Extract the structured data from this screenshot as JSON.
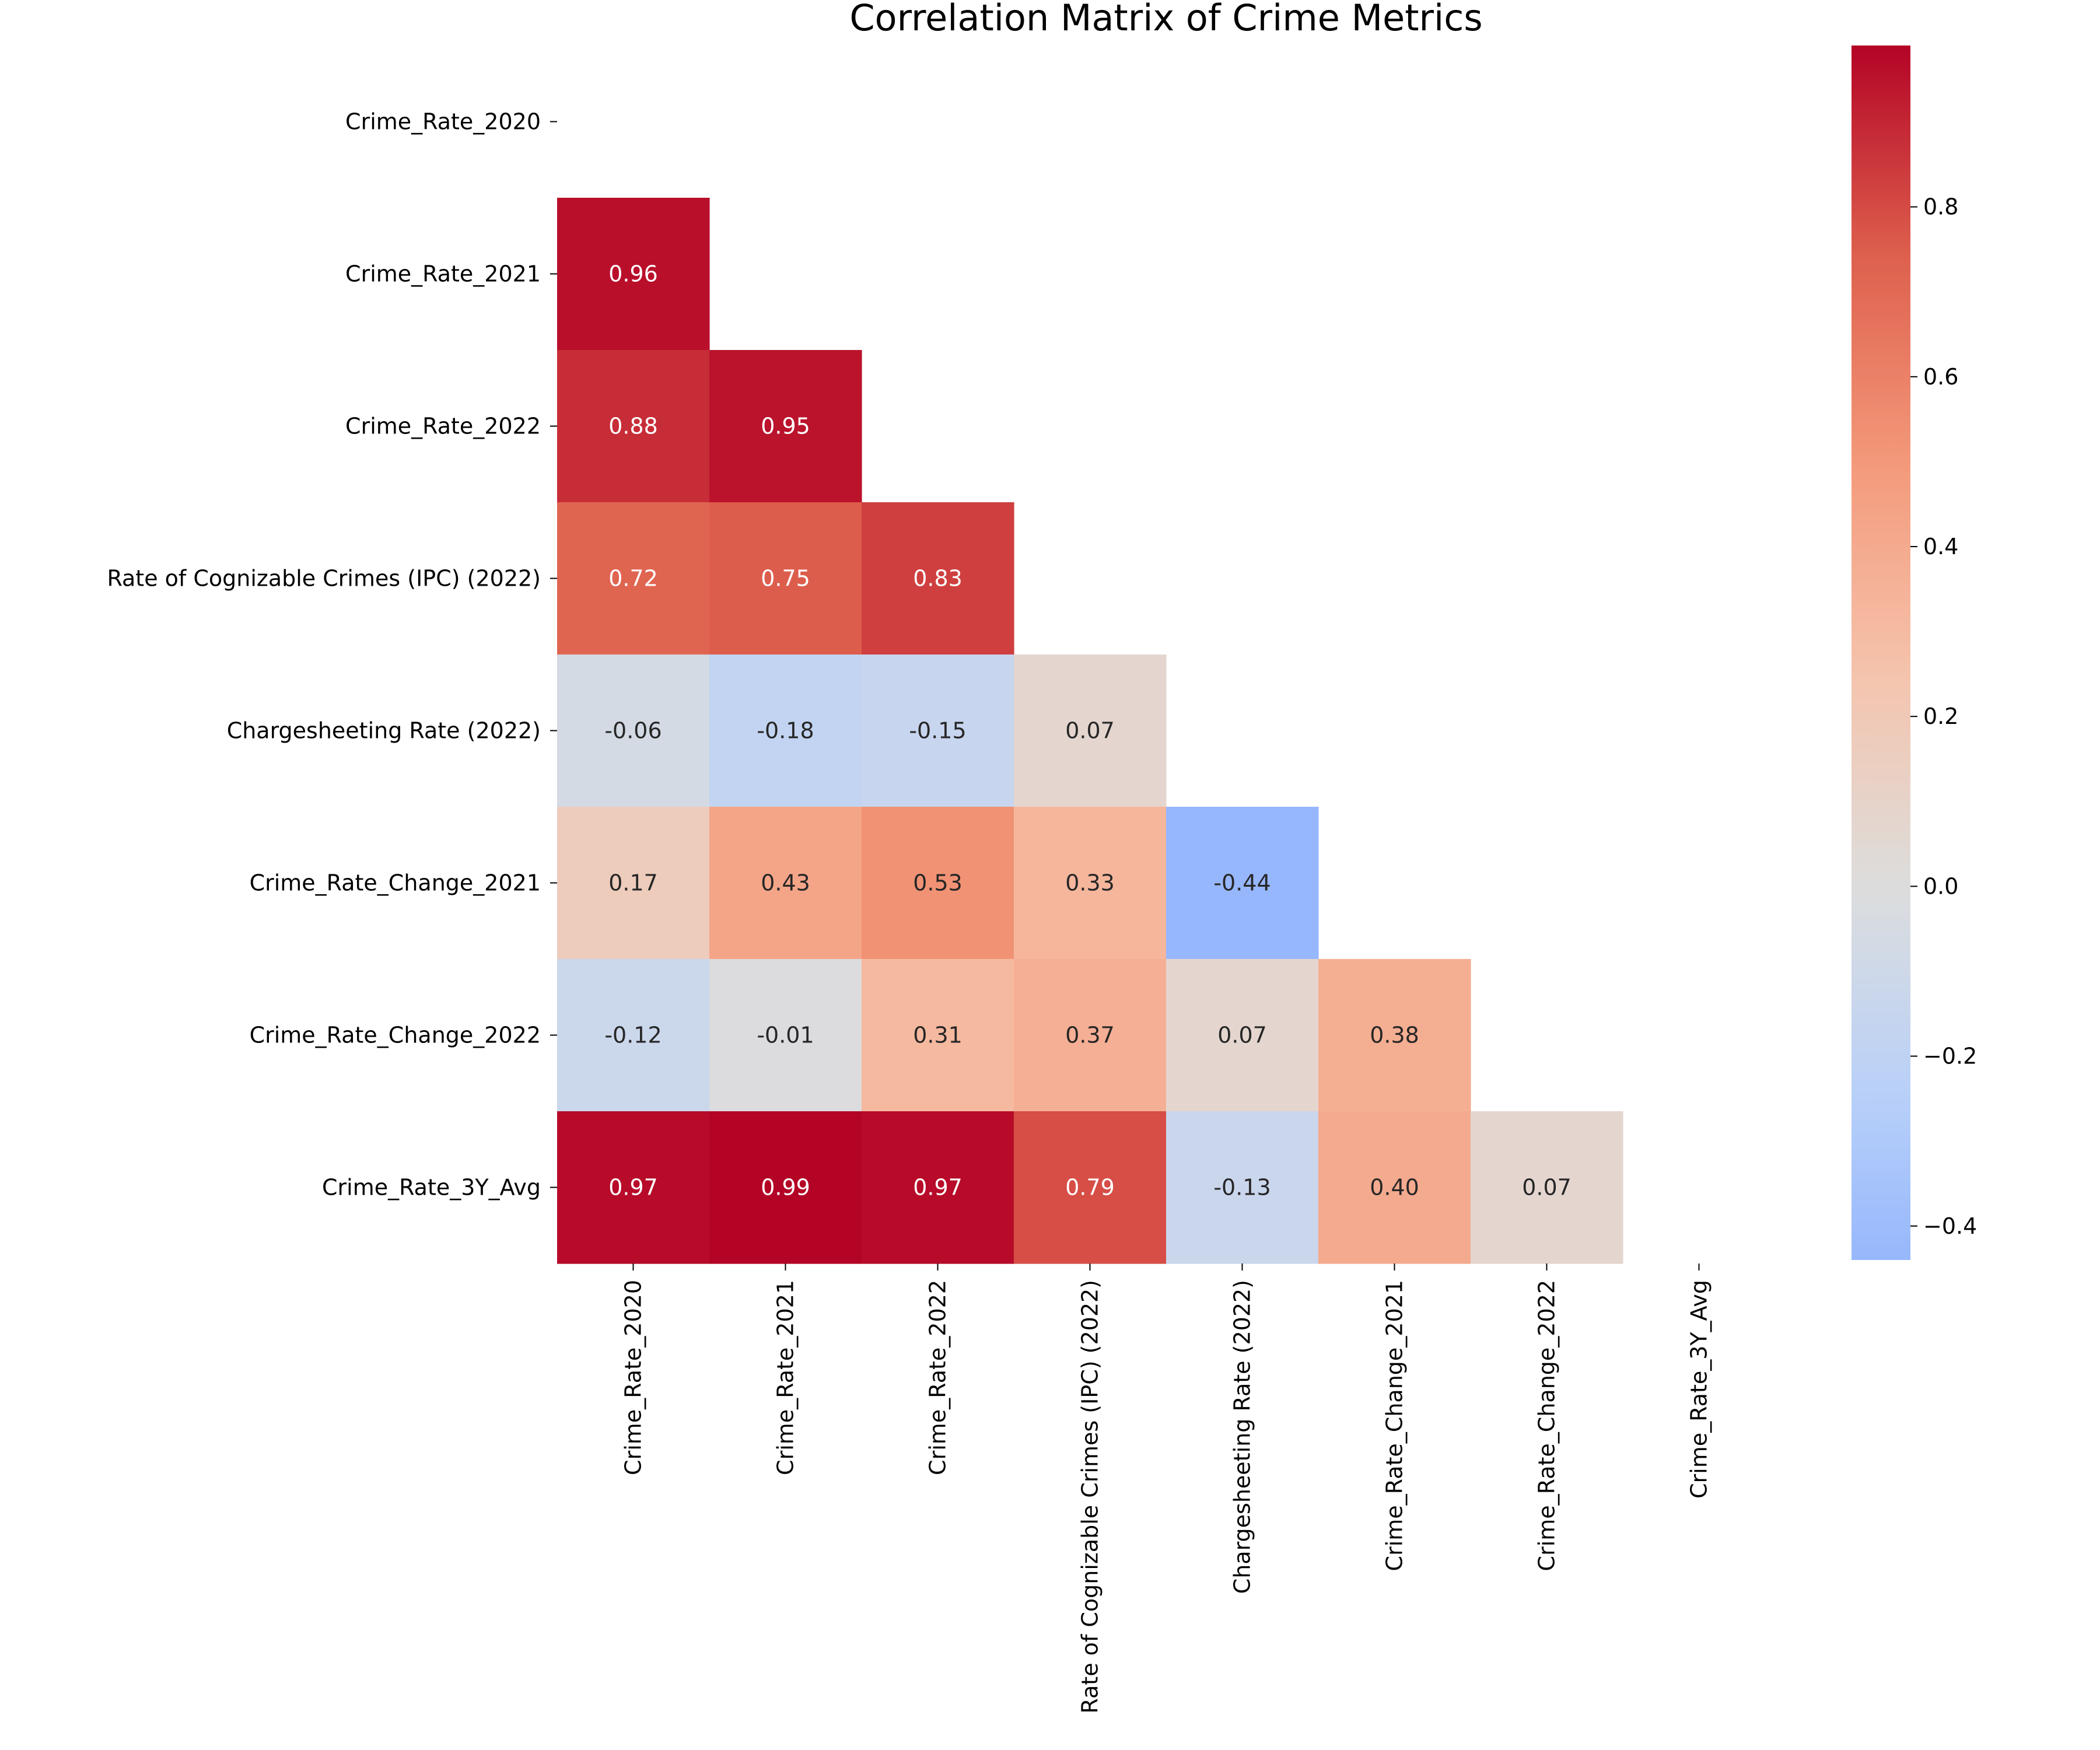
{
  "chart_data": {
    "type": "heatmap",
    "title": "Correlation Matrix of Crime Metrics",
    "mask": "upper-triangle-including-diagonal",
    "labels": [
      "Crime_Rate_2020",
      "Crime_Rate_2021",
      "Crime_Rate_2022",
      "Rate of Cognizable Crimes (IPC) (2022)",
      "Chargesheeting Rate (2022)",
      "Crime_Rate_Change_2021",
      "Crime_Rate_Change_2022",
      "Crime_Rate_3Y_Avg"
    ],
    "values": [
      [
        null,
        null,
        null,
        null,
        null,
        null,
        null,
        null
      ],
      [
        0.96,
        null,
        null,
        null,
        null,
        null,
        null,
        null
      ],
      [
        0.88,
        0.95,
        null,
        null,
        null,
        null,
        null,
        null
      ],
      [
        0.72,
        0.75,
        0.83,
        null,
        null,
        null,
        null,
        null
      ],
      [
        -0.06,
        -0.18,
        -0.15,
        0.07,
        null,
        null,
        null,
        null
      ],
      [
        0.17,
        0.43,
        0.53,
        0.33,
        -0.44,
        null,
        null,
        null
      ],
      [
        -0.12,
        -0.01,
        0.31,
        0.37,
        0.07,
        0.38,
        null,
        null
      ],
      [
        0.97,
        0.99,
        0.97,
        0.79,
        -0.13,
        0.4,
        0.07,
        null
      ]
    ],
    "colormap": "coolwarm",
    "center": 0,
    "colorbar": {
      "range": [
        -0.44,
        0.99
      ],
      "ticks": [
        -0.4,
        -0.2,
        0.0,
        0.2,
        0.4,
        0.6,
        0.8
      ],
      "tick_labels": [
        "−0.4",
        "−0.2",
        "0.0",
        "0.2",
        "0.4",
        "0.6",
        "0.8"
      ]
    }
  }
}
